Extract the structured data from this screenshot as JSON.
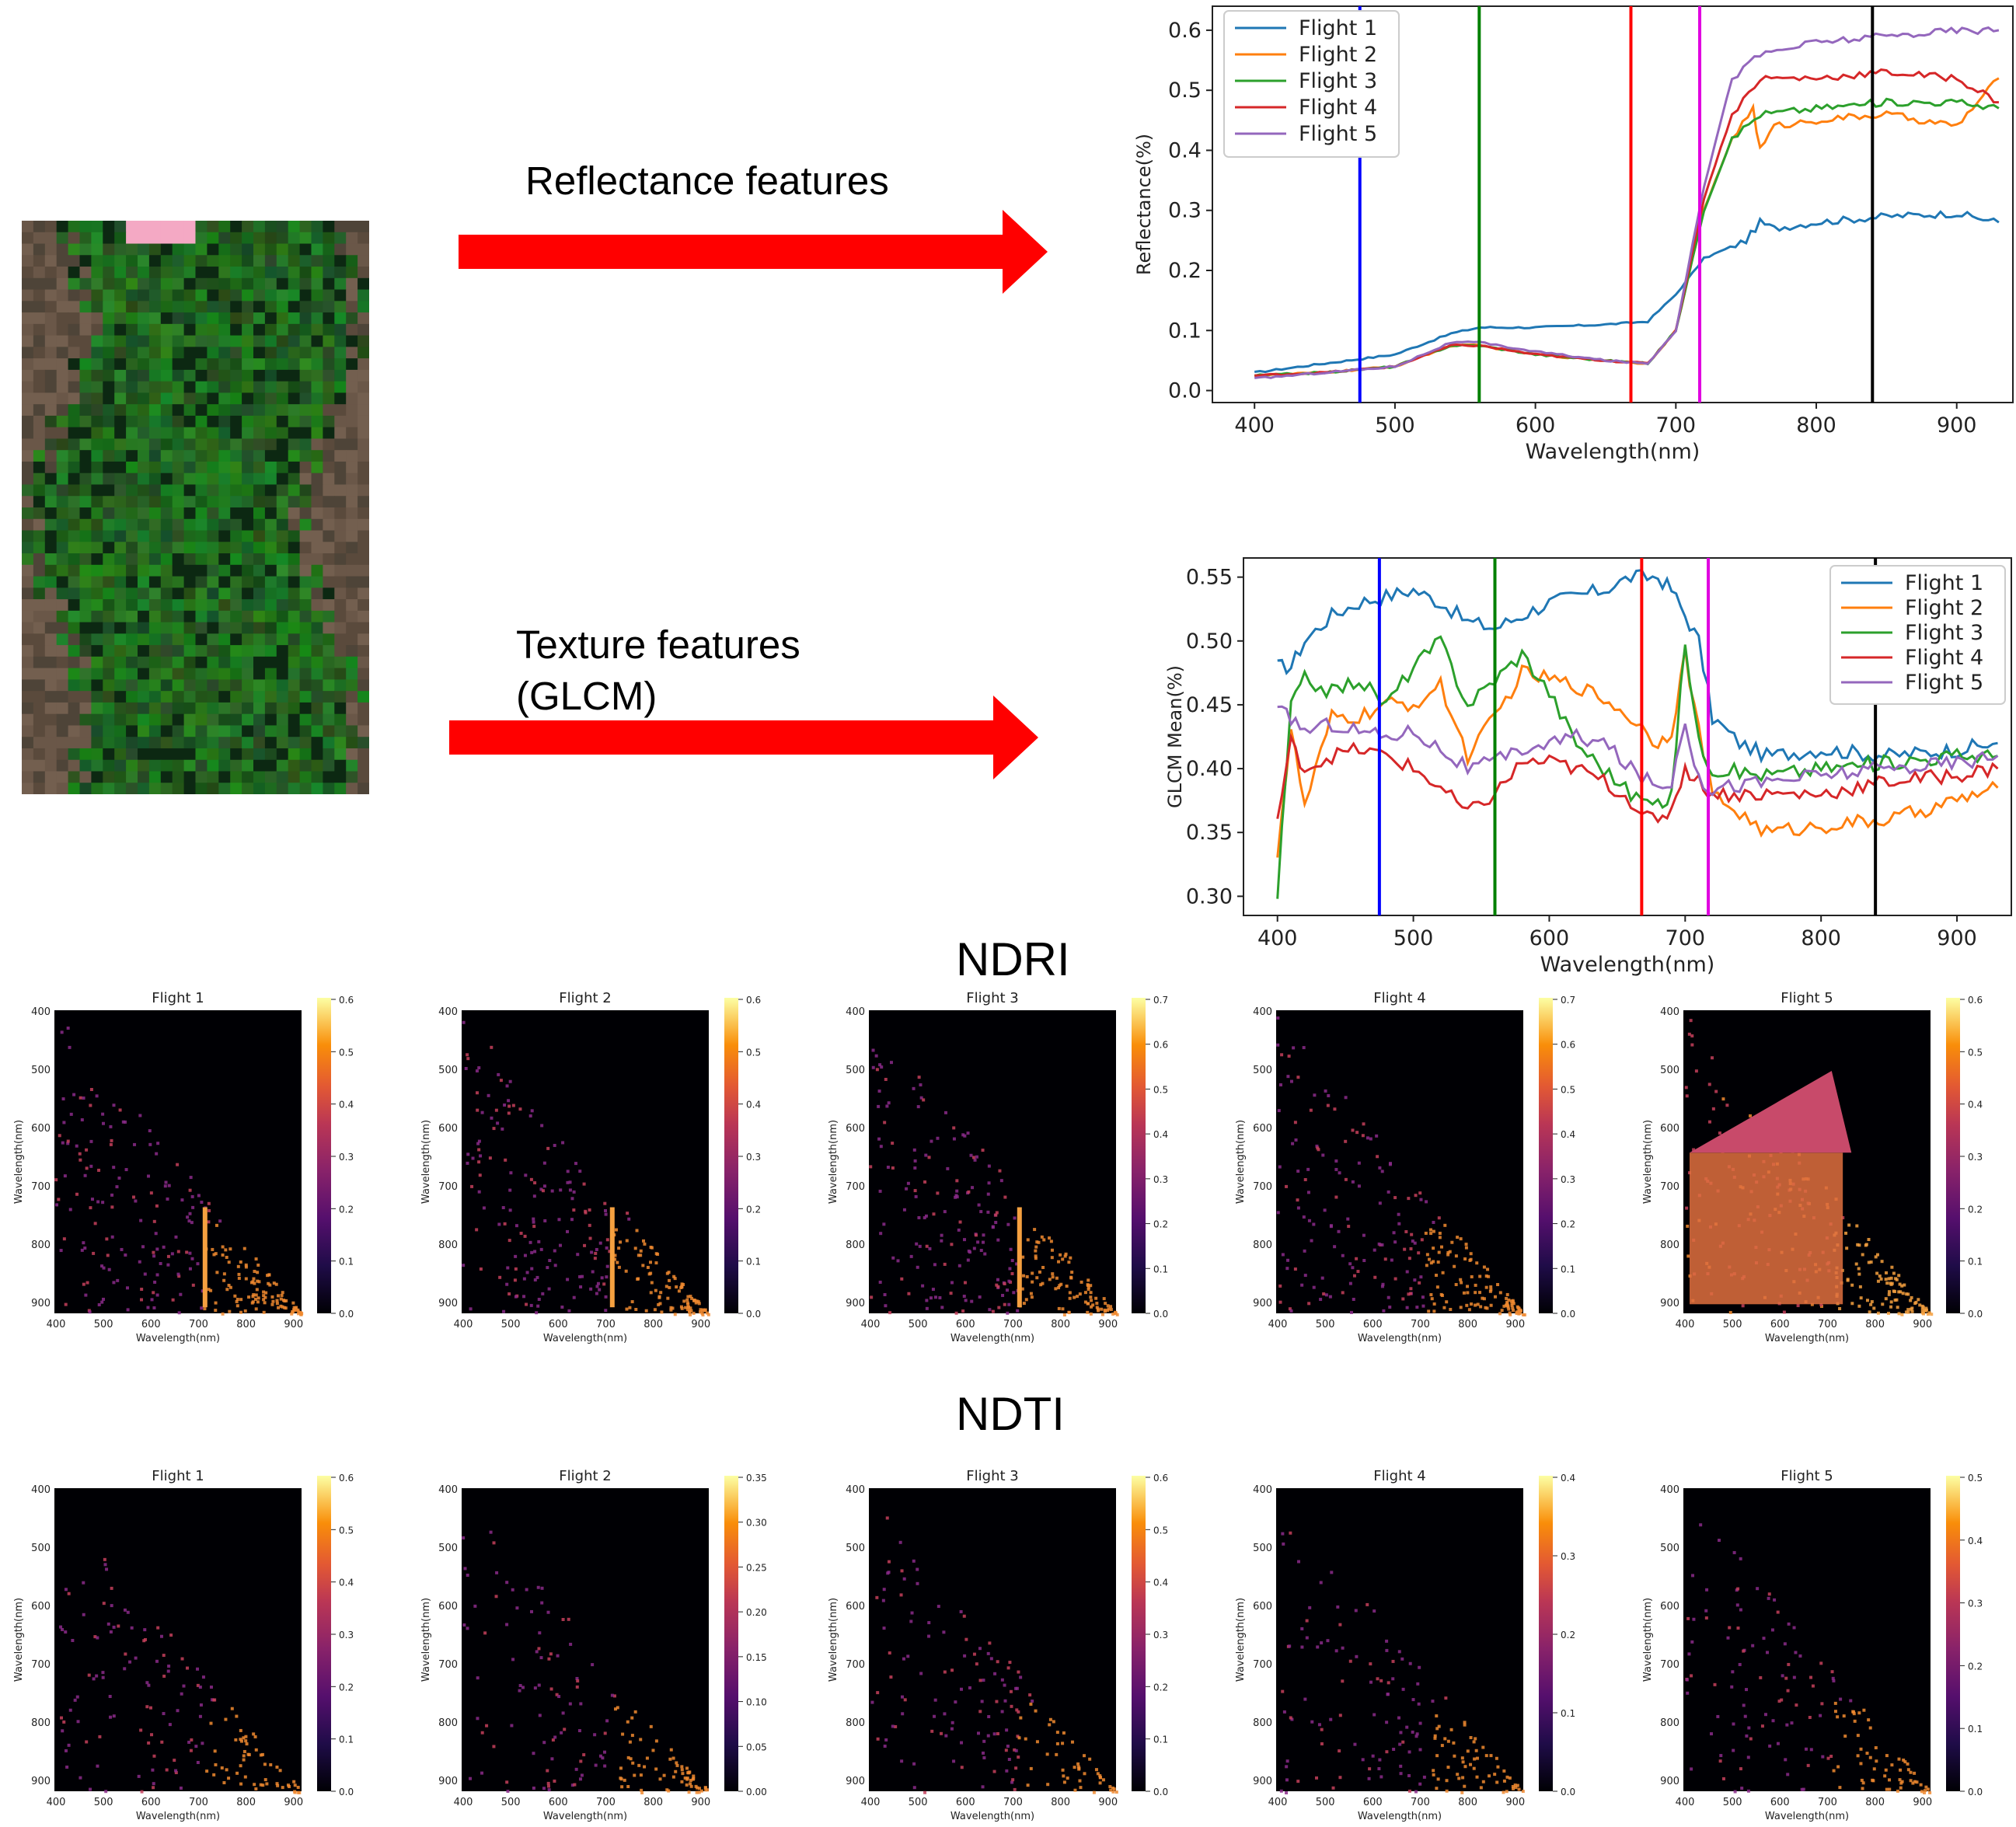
{
  "labels": {
    "reflectance_features": "Reflectance features",
    "texture_features_1": "Texture features",
    "texture_features_2": "(GLCM)",
    "ndri": "NDRI",
    "ndti": "NDTI"
  },
  "colors": {
    "arrow": "#ff0000",
    "flight_1": "#1f77b4",
    "flight_2": "#ff7f0e",
    "flight_3": "#2ca02c",
    "flight_4": "#d62728",
    "flight_5": "#9467bd",
    "heatmap_bg": "#000004",
    "vline_blue": "#0000ff",
    "vline_green": "#008000",
    "vline_red": "#ff0000",
    "vline_magenta": "#e000e0",
    "vline_black": "#000000"
  },
  "chart_data": [
    {
      "id": "reflectance",
      "type": "line",
      "title": "",
      "xlabel": "Wavelength(nm)",
      "ylabel": "Reflectance(%)",
      "xlim": [
        370,
        940
      ],
      "ylim": [
        -0.02,
        0.64
      ],
      "xticks": [
        "400",
        "500",
        "600",
        "700",
        "800",
        "900"
      ],
      "yticks": [
        "0.0",
        "0.1",
        "0.2",
        "0.3",
        "0.4",
        "0.5",
        "0.6"
      ],
      "legend": "top-left",
      "vlines": [
        475,
        560,
        668,
        717,
        840
      ],
      "series": [
        {
          "name": "Flight 1",
          "x": [
            400,
            450,
            500,
            540,
            560,
            600,
            650,
            680,
            700,
            720,
            750,
            760,
            770,
            800,
            850,
            900,
            930
          ],
          "y": [
            0.03,
            0.045,
            0.06,
            0.095,
            0.105,
            0.105,
            0.11,
            0.115,
            0.16,
            0.22,
            0.25,
            0.28,
            0.27,
            0.28,
            0.29,
            0.295,
            0.28
          ]
        },
        {
          "name": "Flight 2",
          "x": [
            400,
            450,
            500,
            540,
            560,
            600,
            650,
            680,
            700,
            720,
            740,
            755,
            760,
            770,
            800,
            850,
            900,
            930
          ],
          "y": [
            0.025,
            0.03,
            0.04,
            0.075,
            0.075,
            0.06,
            0.05,
            0.045,
            0.1,
            0.3,
            0.42,
            0.47,
            0.4,
            0.44,
            0.45,
            0.46,
            0.44,
            0.52
          ]
        },
        {
          "name": "Flight 3",
          "x": [
            400,
            450,
            500,
            540,
            560,
            600,
            650,
            680,
            700,
            720,
            740,
            760,
            800,
            850,
            900,
            930
          ],
          "y": [
            0.025,
            0.03,
            0.04,
            0.075,
            0.075,
            0.06,
            0.05,
            0.045,
            0.1,
            0.3,
            0.42,
            0.46,
            0.47,
            0.48,
            0.48,
            0.47
          ]
        },
        {
          "name": "Flight 4",
          "x": [
            400,
            450,
            500,
            540,
            560,
            600,
            650,
            680,
            700,
            720,
            740,
            760,
            800,
            850,
            900,
            930
          ],
          "y": [
            0.025,
            0.03,
            0.04,
            0.075,
            0.075,
            0.06,
            0.05,
            0.045,
            0.1,
            0.32,
            0.46,
            0.52,
            0.52,
            0.53,
            0.52,
            0.48
          ]
        },
        {
          "name": "Flight 5",
          "x": [
            400,
            450,
            500,
            540,
            560,
            600,
            650,
            680,
            700,
            720,
            740,
            760,
            800,
            850,
            900,
            930
          ],
          "y": [
            0.02,
            0.03,
            0.04,
            0.08,
            0.08,
            0.065,
            0.05,
            0.045,
            0.1,
            0.34,
            0.52,
            0.56,
            0.58,
            0.59,
            0.6,
            0.6
          ]
        }
      ]
    },
    {
      "id": "glcm",
      "type": "line",
      "title": "",
      "xlabel": "Wavelength(nm)",
      "ylabel": "GLCM Mean(%)",
      "xlim": [
        375,
        940
      ],
      "ylim": [
        0.285,
        0.565
      ],
      "xticks": [
        "400",
        "500",
        "600",
        "700",
        "800",
        "900"
      ],
      "yticks": [
        "0.30",
        "0.35",
        "0.40",
        "0.45",
        "0.50",
        "0.55"
      ],
      "legend": "top-right",
      "vlines": [
        475,
        560,
        668,
        717,
        840
      ],
      "series": [
        {
          "name": "Flight 1",
          "x": [
            400,
            410,
            420,
            440,
            460,
            480,
            500,
            520,
            540,
            560,
            580,
            600,
            620,
            640,
            660,
            680,
            690,
            700,
            710,
            720,
            740,
            760,
            800,
            850,
            900,
            930
          ],
          "y": [
            0.48,
            0.48,
            0.5,
            0.52,
            0.53,
            0.535,
            0.54,
            0.53,
            0.515,
            0.51,
            0.52,
            0.53,
            0.535,
            0.54,
            0.55,
            0.55,
            0.54,
            0.52,
            0.5,
            0.44,
            0.42,
            0.41,
            0.415,
            0.41,
            0.415,
            0.42
          ]
        },
        {
          "name": "Flight 2",
          "x": [
            400,
            410,
            420,
            440,
            460,
            480,
            500,
            520,
            540,
            560,
            580,
            600,
            620,
            640,
            660,
            680,
            690,
            700,
            710,
            720,
            760,
            800,
            850,
            900,
            930
          ],
          "y": [
            0.335,
            0.43,
            0.37,
            0.44,
            0.44,
            0.45,
            0.45,
            0.465,
            0.41,
            0.44,
            0.475,
            0.47,
            0.465,
            0.455,
            0.44,
            0.42,
            0.43,
            0.49,
            0.43,
            0.38,
            0.35,
            0.355,
            0.36,
            0.375,
            0.385
          ]
        },
        {
          "name": "Flight 3",
          "x": [
            400,
            410,
            420,
            440,
            460,
            480,
            500,
            520,
            540,
            560,
            580,
            600,
            620,
            640,
            660,
            680,
            690,
            700,
            710,
            720,
            760,
            800,
            850,
            900,
            930
          ],
          "y": [
            0.3,
            0.45,
            0.47,
            0.46,
            0.47,
            0.45,
            0.48,
            0.5,
            0.45,
            0.47,
            0.49,
            0.46,
            0.42,
            0.4,
            0.38,
            0.37,
            0.38,
            0.5,
            0.42,
            0.4,
            0.395,
            0.4,
            0.405,
            0.41,
            0.41
          ]
        },
        {
          "name": "Flight 4",
          "x": [
            400,
            410,
            420,
            440,
            460,
            480,
            500,
            520,
            540,
            560,
            580,
            600,
            620,
            640,
            660,
            680,
            690,
            700,
            710,
            720,
            760,
            800,
            850,
            900,
            930
          ],
          "y": [
            0.36,
            0.42,
            0.4,
            0.41,
            0.415,
            0.41,
            0.4,
            0.385,
            0.365,
            0.38,
            0.405,
            0.405,
            0.4,
            0.39,
            0.375,
            0.355,
            0.37,
            0.4,
            0.39,
            0.38,
            0.38,
            0.38,
            0.39,
            0.395,
            0.4
          ]
        },
        {
          "name": "Flight 5",
          "x": [
            400,
            410,
            420,
            440,
            460,
            480,
            500,
            520,
            540,
            560,
            580,
            600,
            620,
            640,
            660,
            680,
            690,
            700,
            710,
            720,
            760,
            800,
            850,
            900,
            930
          ],
          "y": [
            0.445,
            0.44,
            0.43,
            0.435,
            0.43,
            0.425,
            0.43,
            0.415,
            0.4,
            0.405,
            0.415,
            0.42,
            0.425,
            0.42,
            0.4,
            0.385,
            0.39,
            0.44,
            0.39,
            0.385,
            0.39,
            0.395,
            0.4,
            0.405,
            0.41
          ]
        }
      ]
    }
  ],
  "heatmaps": {
    "xticks": [
      "400",
      "500",
      "600",
      "700",
      "800",
      "900"
    ],
    "yticks": [
      "400",
      "500",
      "600",
      "700",
      "800",
      "900"
    ],
    "xlabel": "Wavelength(nm)",
    "ylabel": "Wavelength(nm)",
    "ndri": [
      {
        "title": "Flight 1",
        "cbar": [
          "0.6",
          "0.5",
          "0.4",
          "0.3",
          "0.2",
          "0.1",
          "0.0"
        ]
      },
      {
        "title": "Flight 2",
        "cbar": [
          "0.6",
          "0.5",
          "0.4",
          "0.3",
          "0.2",
          "0.1",
          "0.0"
        ]
      },
      {
        "title": "Flight 3",
        "cbar": [
          "0.7",
          "0.6",
          "0.5",
          "0.4",
          "0.3",
          "0.2",
          "0.1",
          "0.0"
        ]
      },
      {
        "title": "Flight 4",
        "cbar": [
          "0.7",
          "0.6",
          "0.5",
          "0.4",
          "0.3",
          "0.2",
          "0.1",
          "0.0"
        ]
      },
      {
        "title": "Flight 5",
        "cbar": [
          "0.6",
          "0.5",
          "0.4",
          "0.3",
          "0.2",
          "0.1",
          "0.0"
        ]
      }
    ],
    "ndti": [
      {
        "title": "Flight 1",
        "cbar": [
          "0.6",
          "0.5",
          "0.4",
          "0.3",
          "0.2",
          "0.1",
          "0.0"
        ]
      },
      {
        "title": "Flight 2",
        "cbar": [
          "0.35",
          "0.30",
          "0.25",
          "0.20",
          "0.15",
          "0.10",
          "0.05",
          "0.00"
        ]
      },
      {
        "title": "Flight 3",
        "cbar": [
          "0.6",
          "0.5",
          "0.4",
          "0.3",
          "0.2",
          "0.1",
          "0.0"
        ]
      },
      {
        "title": "Flight 4",
        "cbar": [
          "0.4",
          "0.3",
          "0.2",
          "0.1",
          "0.0"
        ]
      },
      {
        "title": "Flight 5",
        "cbar": [
          "0.5",
          "0.4",
          "0.3",
          "0.2",
          "0.1",
          "0.0"
        ]
      }
    ]
  }
}
